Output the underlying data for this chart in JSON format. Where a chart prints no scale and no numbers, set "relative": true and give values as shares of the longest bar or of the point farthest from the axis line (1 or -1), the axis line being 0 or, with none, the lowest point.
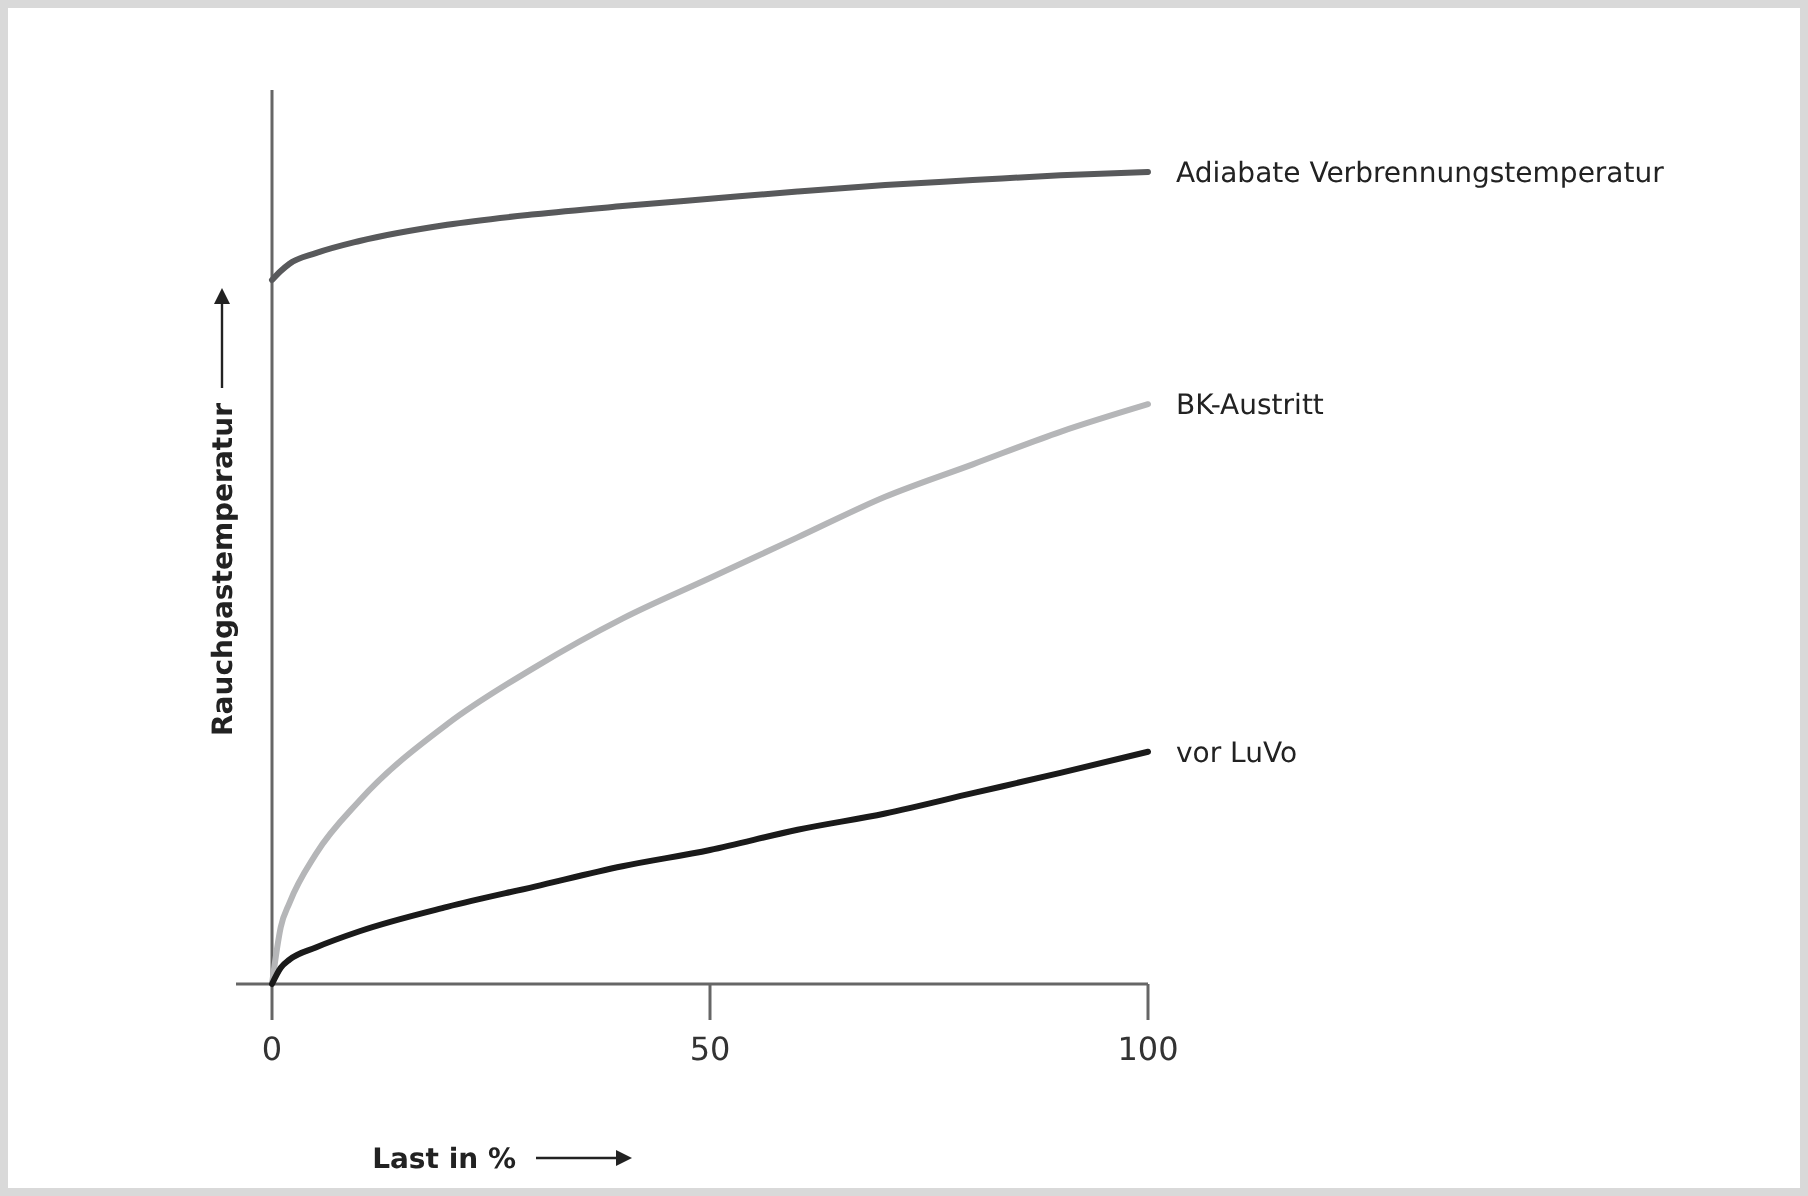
{
  "chart_data": {
    "type": "line",
    "relative": true,
    "xlabel": "Last in %",
    "ylabel": "Rauchgastemperatur",
    "xlim": [
      0,
      100
    ],
    "xticks": [
      0,
      50,
      100
    ],
    "tick_labels": "x",
    "x": [
      0,
      1,
      2,
      5,
      10,
      20,
      30,
      40,
      50,
      60,
      70,
      80,
      90,
      100
    ],
    "series": [
      {
        "name": "Adiabate Verbrennungstemperatur",
        "color": "#58595b",
        "values": [
          0.867,
          0.878,
          0.887,
          0.9,
          0.915,
          0.935,
          0.948,
          0.958,
          0.967,
          0.976,
          0.984,
          0.99,
          0.996,
          1.0
        ]
      },
      {
        "name": "BK-Austritt",
        "color": "#b5b6b8",
        "values": [
          0,
          0.07,
          0.1,
          0.16,
          0.226,
          0.32,
          0.39,
          0.45,
          0.5,
          0.55,
          0.6,
          0.64,
          0.68,
          0.714
        ]
      },
      {
        "name": "vor LuVo",
        "color": "#1a1a1a",
        "values": [
          0,
          0.02,
          0.03,
          0.045,
          0.065,
          0.095,
          0.12,
          0.145,
          0.165,
          0.19,
          0.21,
          0.235,
          0.26,
          0.286
        ]
      }
    ]
  }
}
